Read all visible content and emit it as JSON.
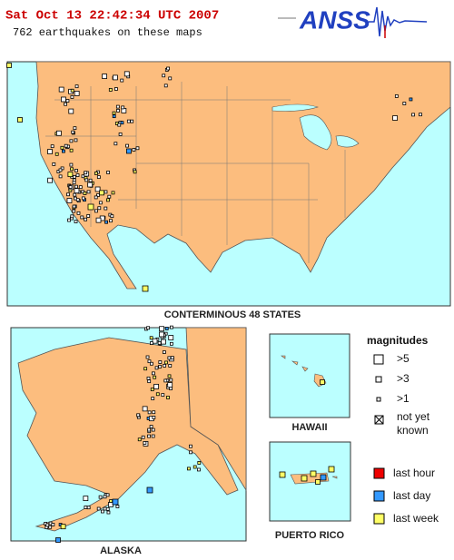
{
  "header": {
    "timestamp": "Sat Oct 13 22:42:34 UTC 2007",
    "summary": "762 earthquakes on these maps",
    "logo": "ANSS"
  },
  "regions": [
    "CONTERMINOUS 48 STATES",
    "ALASKA",
    "HAWAII",
    "PUERTO RICO"
  ],
  "legend": {
    "title": "magnitudes",
    "magnitudes": [
      ">5",
      ">3",
      ">1",
      [
        "not yet",
        "known"
      ]
    ],
    "ages": [
      "last hour",
      "last day",
      "last week"
    ]
  }
}
